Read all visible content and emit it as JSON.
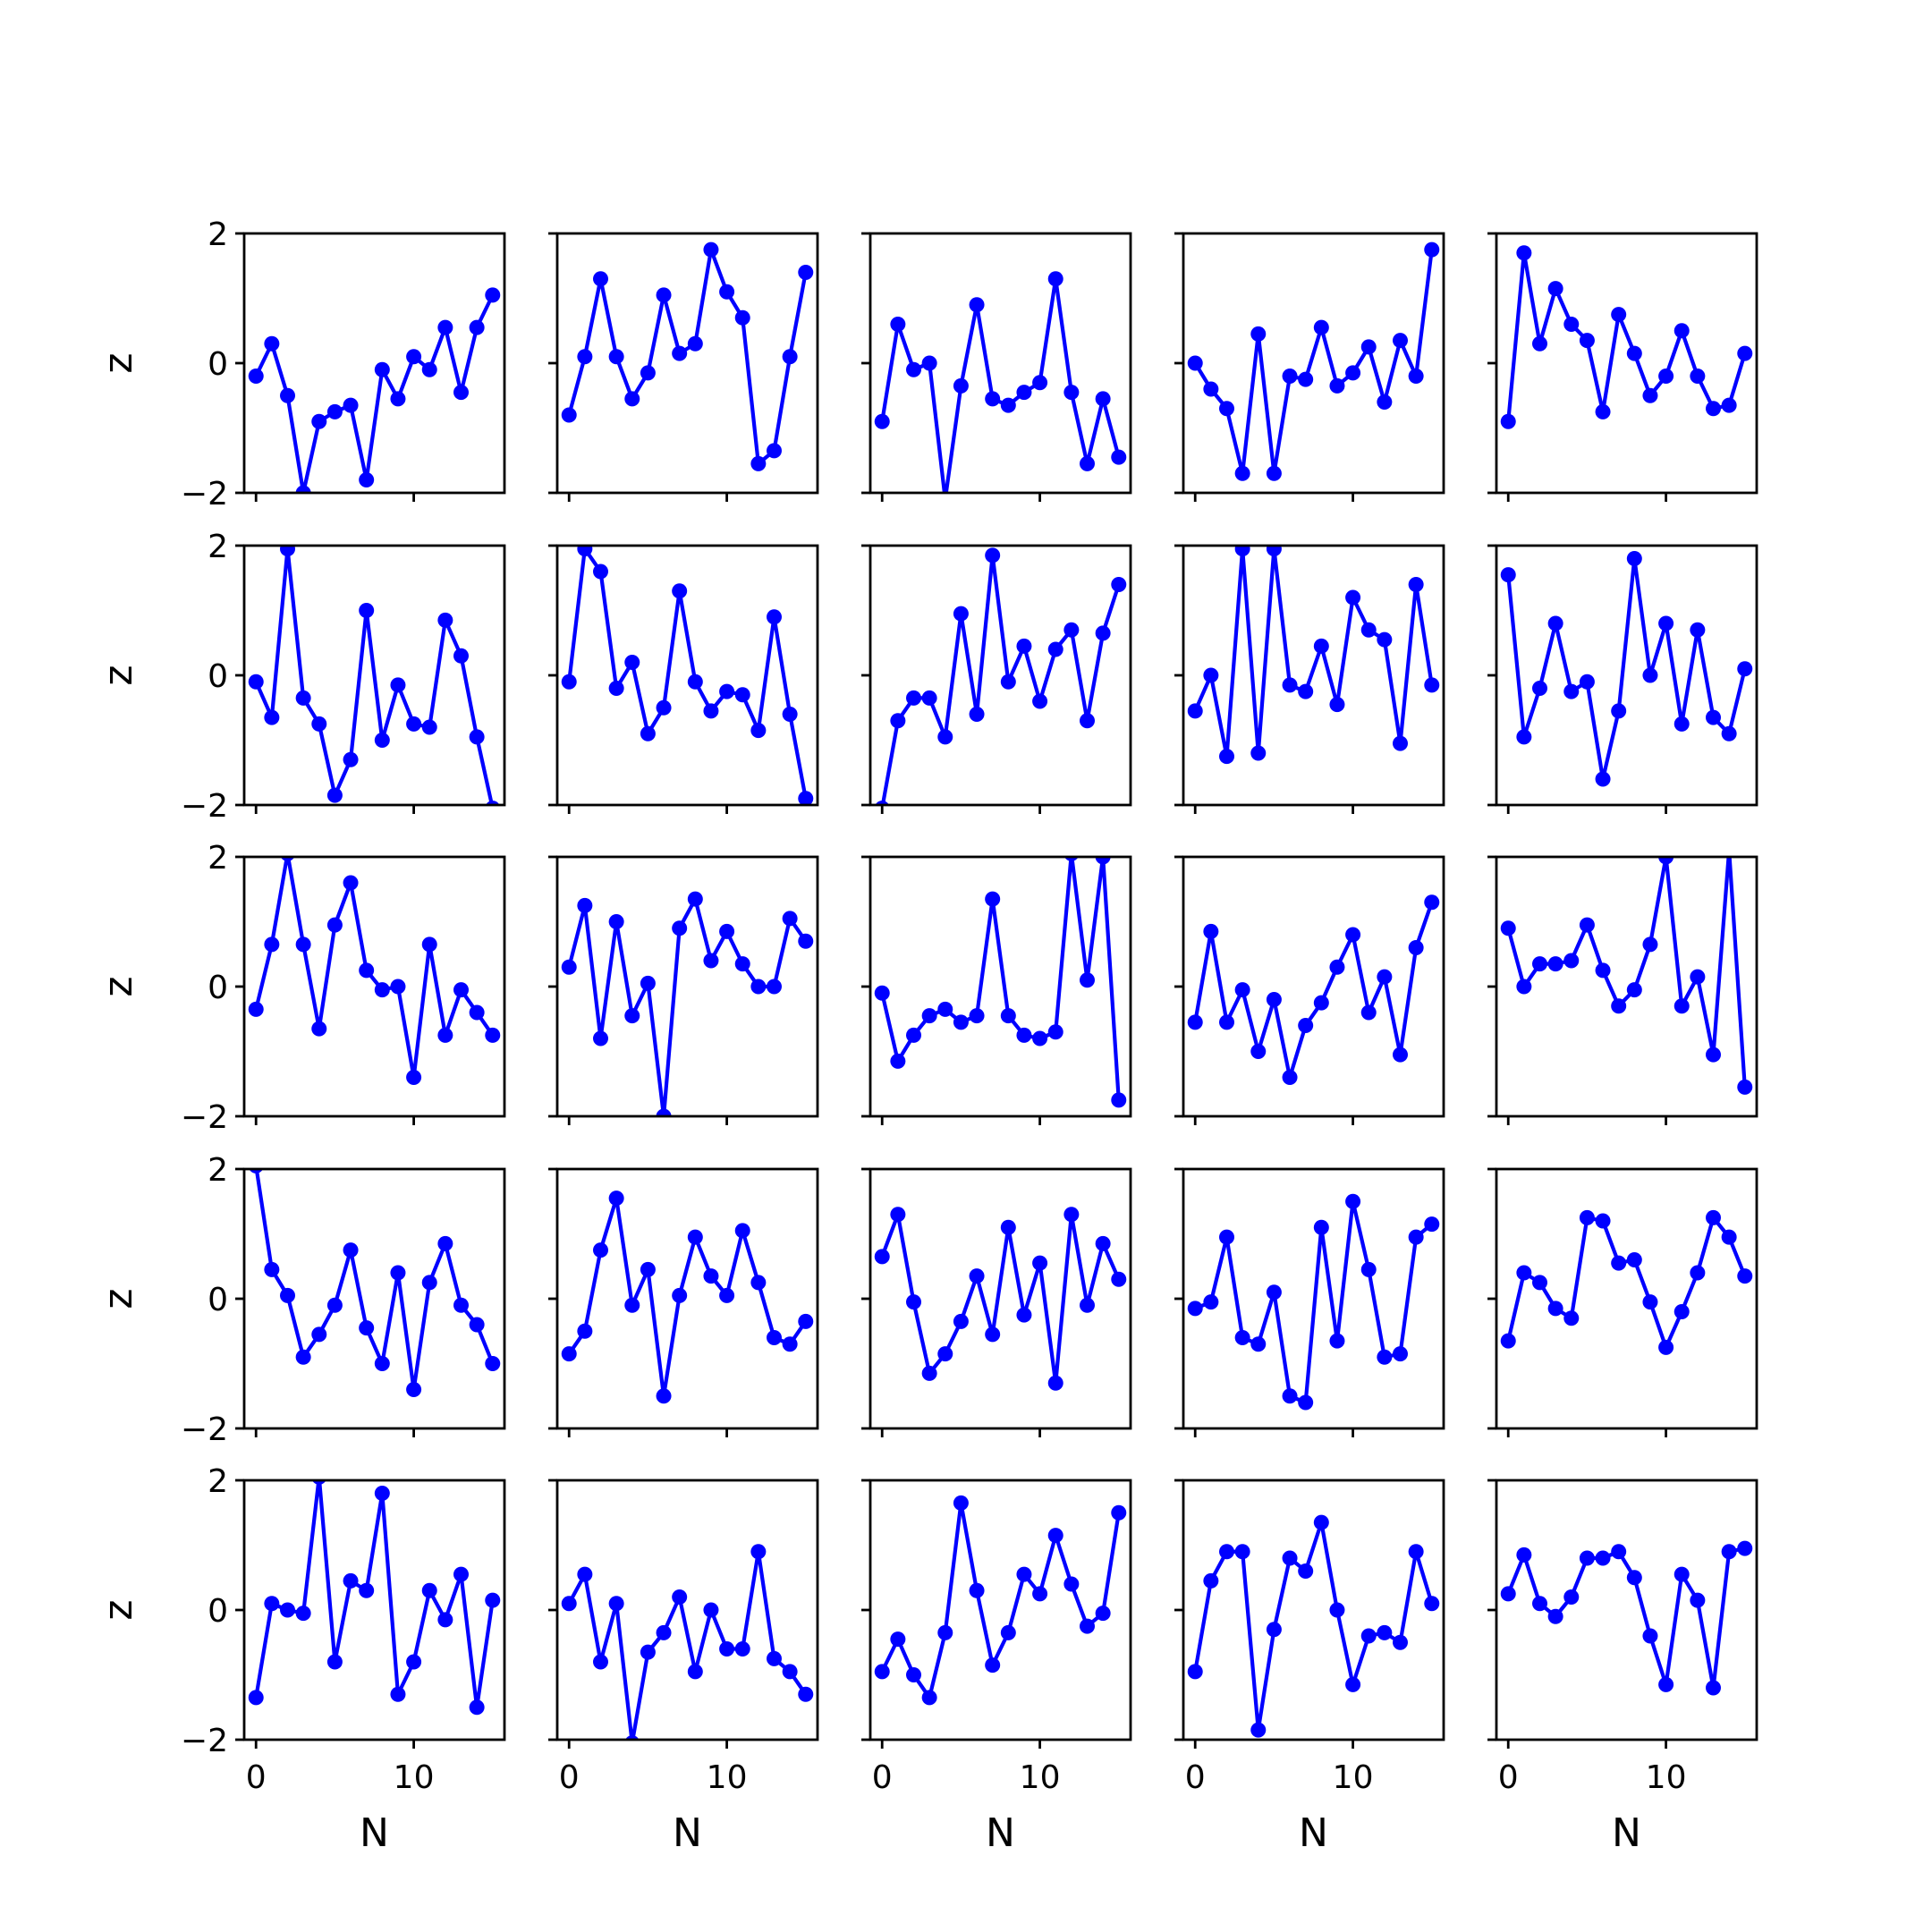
{
  "chart_data": {
    "type": "line",
    "layout": {
      "rows": 5,
      "cols": 5,
      "sharex": true,
      "sharey": true
    },
    "xlabel": "N",
    "ylabel": "z",
    "xlim": [
      -0.75,
      15.75
    ],
    "ylim": [
      -2,
      2
    ],
    "xticks": [
      {
        "value": 0,
        "label": "0"
      },
      {
        "value": 10,
        "label": "10"
      }
    ],
    "yticks": [
      {
        "value": -2,
        "label": "−2"
      },
      {
        "value": 0,
        "label": "0"
      },
      {
        "value": 2,
        "label": "2"
      }
    ],
    "color": "#0000ff",
    "marker": "circle",
    "panels": [
      {
        "row": 1,
        "col": 1,
        "x": [
          0,
          1,
          2,
          3,
          4,
          5,
          6,
          7,
          8,
          9,
          10,
          11,
          12,
          13,
          14,
          15
        ],
        "y": [
          -0.2,
          0.3,
          -0.5,
          -2.0,
          -0.9,
          -0.75,
          -0.65,
          -1.8,
          -0.1,
          -0.55,
          0.1,
          -0.1,
          0.55,
          -0.45,
          0.55,
          1.05
        ]
      },
      {
        "row": 1,
        "col": 2,
        "x": [
          0,
          1,
          2,
          3,
          4,
          5,
          6,
          7,
          8,
          9,
          10,
          11,
          12,
          13,
          14,
          15
        ],
        "y": [
          -0.8,
          0.1,
          1.3,
          0.1,
          -0.55,
          -0.15,
          1.05,
          0.15,
          0.3,
          1.75,
          1.1,
          0.7,
          -1.55,
          -1.35,
          0.1,
          1.4
        ]
      },
      {
        "row": 1,
        "col": 3,
        "x": [
          0,
          1,
          2,
          3,
          4,
          5,
          6,
          7,
          8,
          9,
          10,
          11,
          12,
          13,
          14,
          15
        ],
        "y": [
          -0.9,
          0.6,
          -0.1,
          0.0,
          -2.1,
          -0.35,
          0.9,
          -0.55,
          -0.65,
          -0.45,
          -0.3,
          1.3,
          -0.45,
          -1.55,
          -0.55,
          -1.45
        ]
      },
      {
        "row": 1,
        "col": 4,
        "x": [
          0,
          1,
          2,
          3,
          4,
          5,
          6,
          7,
          8,
          9,
          10,
          11,
          12,
          13,
          14,
          15
        ],
        "y": [
          0.0,
          -0.4,
          -0.7,
          -1.7,
          0.45,
          -1.7,
          -0.2,
          -0.25,
          0.55,
          -0.35,
          -0.15,
          0.25,
          -0.6,
          0.35,
          -0.2,
          1.75
        ]
      },
      {
        "row": 1,
        "col": 5,
        "x": [
          0,
          1,
          2,
          3,
          4,
          5,
          6,
          7,
          8,
          9,
          10,
          11,
          12,
          13,
          14,
          15
        ],
        "y": [
          -0.9,
          1.7,
          0.3,
          1.15,
          0.6,
          0.35,
          -0.75,
          0.75,
          0.15,
          -0.5,
          -0.2,
          0.5,
          -0.2,
          -0.7,
          -0.65,
          0.15
        ]
      },
      {
        "row": 2,
        "col": 1,
        "x": [
          0,
          1,
          2,
          3,
          4,
          5,
          6,
          7,
          8,
          9,
          10,
          11,
          12,
          13,
          14,
          15
        ],
        "y": [
          -0.1,
          -0.65,
          1.95,
          -0.35,
          -0.75,
          -1.85,
          -1.3,
          1.0,
          -1.0,
          -0.15,
          -0.75,
          -0.8,
          0.85,
          0.3,
          -0.95,
          -2.05
        ]
      },
      {
        "row": 2,
        "col": 2,
        "x": [
          0,
          1,
          2,
          3,
          4,
          5,
          6,
          7,
          8,
          9,
          10,
          11,
          12,
          13,
          14,
          15
        ],
        "y": [
          -0.1,
          1.95,
          1.6,
          -0.2,
          0.2,
          -0.9,
          -0.5,
          1.3,
          -0.1,
          -0.55,
          -0.25,
          -0.3,
          -0.85,
          0.9,
          -0.6,
          -1.9
        ]
      },
      {
        "row": 2,
        "col": 3,
        "x": [
          0,
          1,
          2,
          3,
          4,
          5,
          6,
          7,
          8,
          9,
          10,
          11,
          12,
          13,
          14,
          15
        ],
        "y": [
          -2.05,
          -0.7,
          -0.35,
          -0.35,
          -0.95,
          0.95,
          -0.6,
          1.85,
          -0.1,
          0.45,
          -0.4,
          0.4,
          0.7,
          -0.7,
          0.65,
          1.4
        ]
      },
      {
        "row": 2,
        "col": 4,
        "x": [
          0,
          1,
          2,
          3,
          4,
          5,
          6,
          7,
          8,
          9,
          10,
          11,
          12,
          13,
          14,
          15
        ],
        "y": [
          -0.55,
          0.0,
          -1.25,
          1.95,
          -1.2,
          1.95,
          -0.15,
          -0.25,
          0.45,
          -0.45,
          1.2,
          0.7,
          0.55,
          -1.05,
          1.4,
          -0.15
        ]
      },
      {
        "row": 2,
        "col": 5,
        "x": [
          0,
          1,
          2,
          3,
          4,
          5,
          6,
          7,
          8,
          9,
          10,
          11,
          12,
          13,
          14,
          15
        ],
        "y": [
          1.55,
          -0.95,
          -0.2,
          0.8,
          -0.25,
          -0.1,
          -1.6,
          -0.55,
          1.8,
          0.0,
          0.8,
          -0.75,
          0.7,
          -0.65,
          -0.9,
          0.1
        ]
      },
      {
        "row": 3,
        "col": 1,
        "x": [
          0,
          1,
          2,
          3,
          4,
          5,
          6,
          7,
          8,
          9,
          10,
          11,
          12,
          13,
          14,
          15
        ],
        "y": [
          -0.35,
          0.65,
          2.05,
          0.65,
          -0.65,
          0.95,
          1.6,
          0.25,
          -0.05,
          0.0,
          -1.4,
          0.65,
          -0.75,
          -0.05,
          -0.4,
          -0.75
        ]
      },
      {
        "row": 3,
        "col": 2,
        "x": [
          0,
          1,
          2,
          3,
          4,
          5,
          6,
          7,
          8,
          9,
          10,
          11,
          12,
          13,
          14,
          15
        ],
        "y": [
          0.3,
          1.25,
          -0.8,
          1.0,
          -0.45,
          0.05,
          -2.0,
          0.9,
          1.35,
          0.4,
          0.85,
          0.35,
          0.0,
          0.0,
          1.05,
          0.7
        ]
      },
      {
        "row": 3,
        "col": 3,
        "x": [
          0,
          1,
          2,
          3,
          4,
          5,
          6,
          7,
          8,
          9,
          10,
          11,
          12,
          13,
          14,
          15
        ],
        "y": [
          -0.1,
          -1.15,
          -0.75,
          -0.45,
          -0.35,
          -0.55,
          -0.45,
          1.35,
          -0.45,
          -0.75,
          -0.8,
          -0.7,
          2.05,
          0.1,
          2.0,
          -1.75
        ]
      },
      {
        "row": 3,
        "col": 4,
        "x": [
          0,
          1,
          2,
          3,
          4,
          5,
          6,
          7,
          8,
          9,
          10,
          11,
          12,
          13,
          14,
          15
        ],
        "y": [
          -0.55,
          0.85,
          -0.55,
          -0.05,
          -1.0,
          -0.2,
          -1.4,
          -0.6,
          -0.25,
          0.3,
          0.8,
          -0.4,
          0.15,
          -1.05,
          0.6,
          1.3
        ]
      },
      {
        "row": 3,
        "col": 5,
        "x": [
          0,
          1,
          2,
          3,
          4,
          5,
          6,
          7,
          8,
          9,
          10,
          11,
          12,
          13,
          14,
          15
        ],
        "y": [
          0.9,
          0.0,
          0.35,
          0.35,
          0.4,
          0.95,
          0.25,
          -0.3,
          -0.05,
          0.65,
          2.0,
          -0.3,
          0.15,
          -1.05,
          2.1,
          -1.55
        ]
      },
      {
        "row": 4,
        "col": 1,
        "x": [
          0,
          1,
          2,
          3,
          4,
          5,
          6,
          7,
          8,
          9,
          10,
          11,
          12,
          13,
          14,
          15
        ],
        "y": [
          2.05,
          0.45,
          0.05,
          -0.9,
          -0.55,
          -0.1,
          0.75,
          -0.45,
          -1.0,
          0.4,
          -1.4,
          0.25,
          0.85,
          -0.1,
          -0.4,
          -1.0
        ]
      },
      {
        "row": 4,
        "col": 2,
        "x": [
          0,
          1,
          2,
          3,
          4,
          5,
          6,
          7,
          8,
          9,
          10,
          11,
          12,
          13,
          14,
          15
        ],
        "y": [
          -0.85,
          -0.5,
          0.75,
          1.55,
          -0.1,
          0.45,
          -1.5,
          0.05,
          0.95,
          0.35,
          0.05,
          1.05,
          0.25,
          -0.6,
          -0.7,
          -0.35
        ]
      },
      {
        "row": 4,
        "col": 3,
        "x": [
          0,
          1,
          2,
          3,
          4,
          5,
          6,
          7,
          8,
          9,
          10,
          11,
          12,
          13,
          14,
          15
        ],
        "y": [
          0.65,
          1.3,
          -0.05,
          -1.15,
          -0.85,
          -0.35,
          0.35,
          -0.55,
          1.1,
          -0.25,
          0.55,
          -1.3,
          1.3,
          -0.1,
          0.85,
          0.3
        ]
      },
      {
        "row": 4,
        "col": 4,
        "x": [
          0,
          1,
          2,
          3,
          4,
          5,
          6,
          7,
          8,
          9,
          10,
          11,
          12,
          13,
          14,
          15
        ],
        "y": [
          -0.15,
          -0.05,
          0.95,
          -0.6,
          -0.7,
          0.1,
          -1.5,
          -1.6,
          1.1,
          -0.65,
          1.5,
          0.45,
          -0.9,
          -0.85,
          0.95,
          1.15
        ]
      },
      {
        "row": 4,
        "col": 5,
        "x": [
          0,
          1,
          2,
          3,
          4,
          5,
          6,
          7,
          8,
          9,
          10,
          11,
          12,
          13,
          14,
          15
        ],
        "y": [
          -0.65,
          0.4,
          0.25,
          -0.15,
          -0.3,
          1.25,
          1.2,
          0.55,
          0.6,
          -0.05,
          -0.75,
          -0.2,
          0.4,
          1.25,
          0.95,
          0.35
        ]
      },
      {
        "row": 5,
        "col": 1,
        "x": [
          0,
          1,
          2,
          3,
          4,
          5,
          6,
          7,
          8,
          9,
          10,
          11,
          12,
          13,
          14,
          15
        ],
        "y": [
          -1.35,
          0.1,
          0.0,
          -0.05,
          2.05,
          -0.8,
          0.45,
          0.3,
          1.8,
          -1.3,
          -0.8,
          0.3,
          -0.15,
          0.55,
          -1.5,
          0.15
        ]
      },
      {
        "row": 5,
        "col": 2,
        "x": [
          0,
          1,
          2,
          3,
          4,
          5,
          6,
          7,
          8,
          9,
          10,
          11,
          12,
          13,
          14,
          15
        ],
        "y": [
          0.1,
          0.55,
          -0.8,
          0.1,
          -2.05,
          -0.65,
          -0.35,
          0.2,
          -0.95,
          0.0,
          -0.6,
          -0.6,
          0.9,
          -0.75,
          -0.95,
          -1.3
        ]
      },
      {
        "row": 5,
        "col": 3,
        "x": [
          0,
          1,
          2,
          3,
          4,
          5,
          6,
          7,
          8,
          9,
          10,
          11,
          12,
          13,
          14,
          15
        ],
        "y": [
          -0.95,
          -0.45,
          -1.0,
          -1.35,
          -0.35,
          1.65,
          0.3,
          -0.85,
          -0.35,
          0.55,
          0.25,
          1.15,
          0.4,
          -0.25,
          -0.05,
          1.5
        ]
      },
      {
        "row": 5,
        "col": 4,
        "x": [
          0,
          1,
          2,
          3,
          4,
          5,
          6,
          7,
          8,
          9,
          10,
          11,
          12,
          13,
          14,
          15
        ],
        "y": [
          -0.95,
          0.45,
          0.9,
          0.9,
          -1.85,
          -0.3,
          0.8,
          0.6,
          1.35,
          0.0,
          -1.15,
          -0.4,
          -0.35,
          -0.5,
          0.9,
          0.1
        ]
      },
      {
        "row": 5,
        "col": 5,
        "x": [
          0,
          1,
          2,
          3,
          4,
          5,
          6,
          7,
          8,
          9,
          10,
          11,
          12,
          13,
          14,
          15
        ],
        "y": [
          0.25,
          0.85,
          0.1,
          -0.1,
          0.2,
          0.8,
          0.8,
          0.9,
          0.5,
          -0.4,
          -1.15,
          0.55,
          0.15,
          -1.2,
          0.9,
          0.95
        ]
      }
    ]
  }
}
